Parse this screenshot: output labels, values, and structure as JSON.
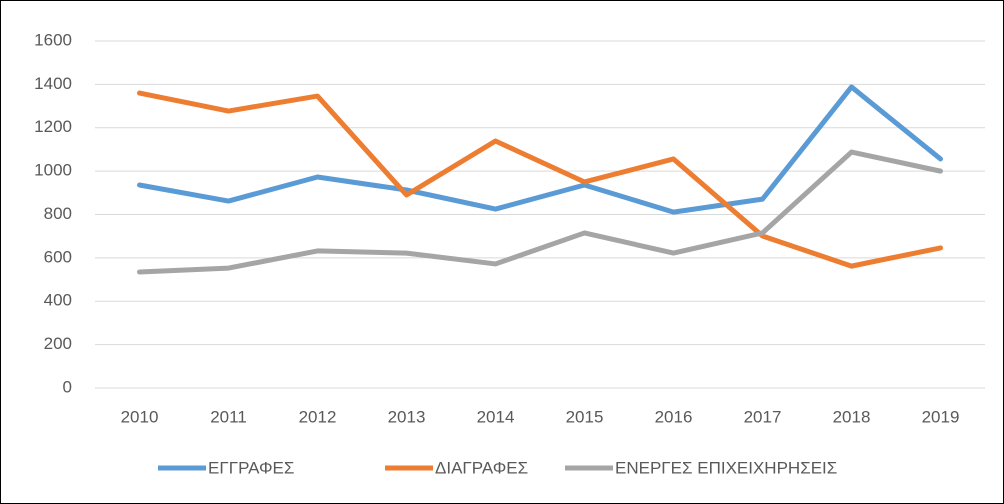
{
  "chart_data": {
    "type": "line",
    "categories": [
      "2010",
      "2011",
      "2012",
      "2013",
      "2014",
      "2015",
      "2016",
      "2017",
      "2018",
      "2019"
    ],
    "series": [
      {
        "name": "ΕΓΓΡΑΦΕΣ",
        "color": "#5b9bd5",
        "values": [
          936,
          862,
          973,
          913,
          825,
          936,
          811,
          871,
          1388,
          1056
        ]
      },
      {
        "name": "ΔΙΑΓΡΑΦΕΣ",
        "color": "#ed7d31",
        "values": [
          1360,
          1277,
          1346,
          890,
          1139,
          950,
          1056,
          701,
          562,
          646
        ]
      },
      {
        "name": "ΕΝΕΡΓΕΣ ΕΠΙΧΕΙΧΗΡΗΣΕΙΣ",
        "color": "#a5a5a5",
        "values": [
          535,
          553,
          632,
          622,
          572,
          715,
          622,
          715,
          1088,
          1000
        ]
      }
    ],
    "ylim": [
      0,
      1600
    ],
    "yticks": [
      0,
      200,
      400,
      600,
      800,
      1000,
      1200,
      1400,
      1600
    ],
    "grid": true,
    "legend": "bottom"
  }
}
